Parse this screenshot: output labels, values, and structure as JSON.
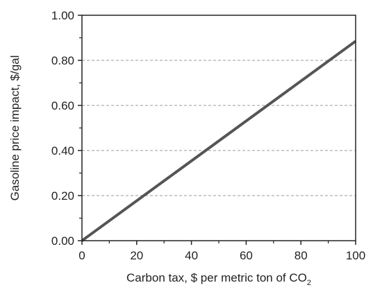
{
  "chart_data": {
    "type": "line",
    "title": "",
    "xlabel": "Carbon tax, $ per metric ton of CO",
    "xlabel_subscript": "2",
    "ylabel": "Gasoline price impact, $/gal",
    "xlim": [
      0,
      100
    ],
    "ylim": [
      0,
      1.0
    ],
    "x_ticks": [
      0,
      20,
      40,
      60,
      80,
      100
    ],
    "x_tick_labels": [
      "0",
      "20",
      "40",
      "60",
      "80",
      "100"
    ],
    "y_ticks": [
      0,
      0.2,
      0.4,
      0.6,
      0.8,
      1.0
    ],
    "y_tick_labels": [
      "0.00",
      "0.20",
      "0.40",
      "0.60",
      "0.80",
      "1.00"
    ],
    "grid": "horizontal-dashed",
    "legend": "none",
    "series": [
      {
        "color": "#555555",
        "x": [
          0,
          100
        ],
        "y": [
          0,
          0.885
        ]
      }
    ]
  }
}
